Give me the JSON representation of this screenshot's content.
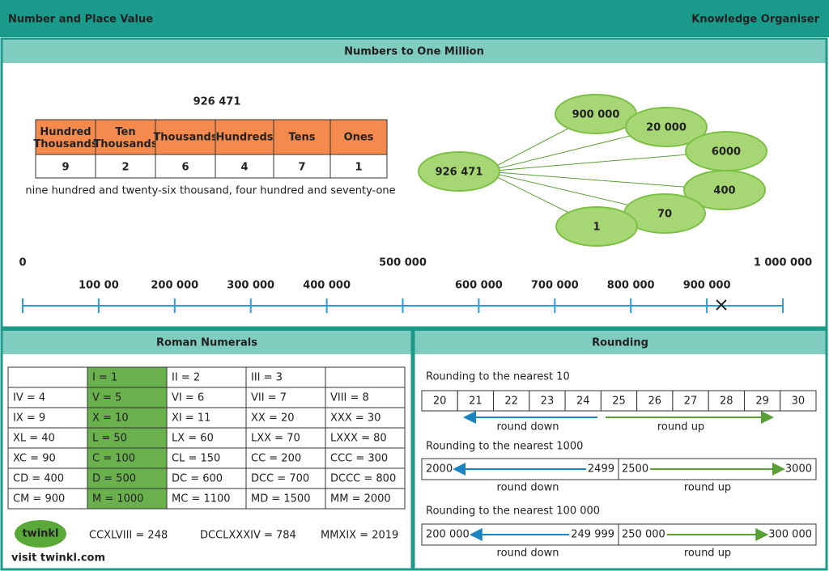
{
  "header": {
    "title": "Number and Place Value",
    "subtitle": "Knowledge Organiser"
  },
  "numbers": {
    "heading": "Numbers to One Million",
    "number": "926 471",
    "place_value": {
      "headers": [
        "Hundred Thousands",
        "Ten Thousands",
        "Thousands",
        "Hundreds",
        "Tens",
        "Ones"
      ],
      "digits": [
        "9",
        "2",
        "6",
        "4",
        "7",
        "1"
      ]
    },
    "words": "nine hundred and twenty-six thousand, four hundred and seventy-one",
    "partition": {
      "whole": "926 471",
      "parts": [
        "900 000",
        "20 000",
        "6000",
        "400",
        "70",
        "1"
      ]
    },
    "number_line": {
      "top": [
        "0",
        "500 000",
        "1 000 000"
      ],
      "bottom": [
        "100 00",
        "200 000",
        "300 000",
        "400 000",
        "600 000",
        "700 000",
        "800 000",
        "900 000"
      ]
    }
  },
  "roman": {
    "heading": "Roman Numerals",
    "rows": [
      [
        null,
        "I = 1",
        "II = 2",
        "III = 3",
        null
      ],
      [
        "IV = 4",
        "V = 5",
        "VI = 6",
        "VII = 7",
        "VIII = 8"
      ],
      [
        "IX = 9",
        "X = 10",
        "XI = 11",
        "XX = 20",
        "XXX = 30"
      ],
      [
        "XL = 40",
        "L = 50",
        "LX = 60",
        "LXX = 70",
        "LXXX = 80"
      ],
      [
        "XC = 90",
        "C = 100",
        "CL = 150",
        "CC = 200",
        "CCC = 300"
      ],
      [
        "CD = 400",
        "D = 500",
        "DC = 600",
        "DCC = 700",
        "DCCC = 800"
      ],
      [
        "CM = 900",
        "M = 1000",
        "MC = 1100",
        "MD = 1500",
        "MM = 2000"
      ]
    ],
    "examples": [
      "CCXLVIII = 248",
      "DCCLXXXIV = 784",
      "MMXIX = 2019"
    ]
  },
  "footer": {
    "logo": "twinkl",
    "link": "visit twinkl.com"
  },
  "rounding": {
    "heading": "Rounding",
    "tens": {
      "title": "Rounding to the nearest 10",
      "cells": [
        "20",
        "21",
        "22",
        "23",
        "24",
        "25",
        "26",
        "27",
        "28",
        "29",
        "30"
      ],
      "down": "round down",
      "up": "round up"
    },
    "spans": [
      {
        "title": "Rounding to the nearest 1000",
        "start": "2000",
        "low": "2499",
        "high": "2500",
        "end": "3000",
        "down": "round down",
        "up": "round up"
      },
      {
        "title": "Rounding to the nearest 100 000",
        "start": "200 000",
        "low": "249 999",
        "high": "250 000",
        "end": "300 000",
        "down": "round down",
        "up": "round up"
      }
    ]
  }
}
